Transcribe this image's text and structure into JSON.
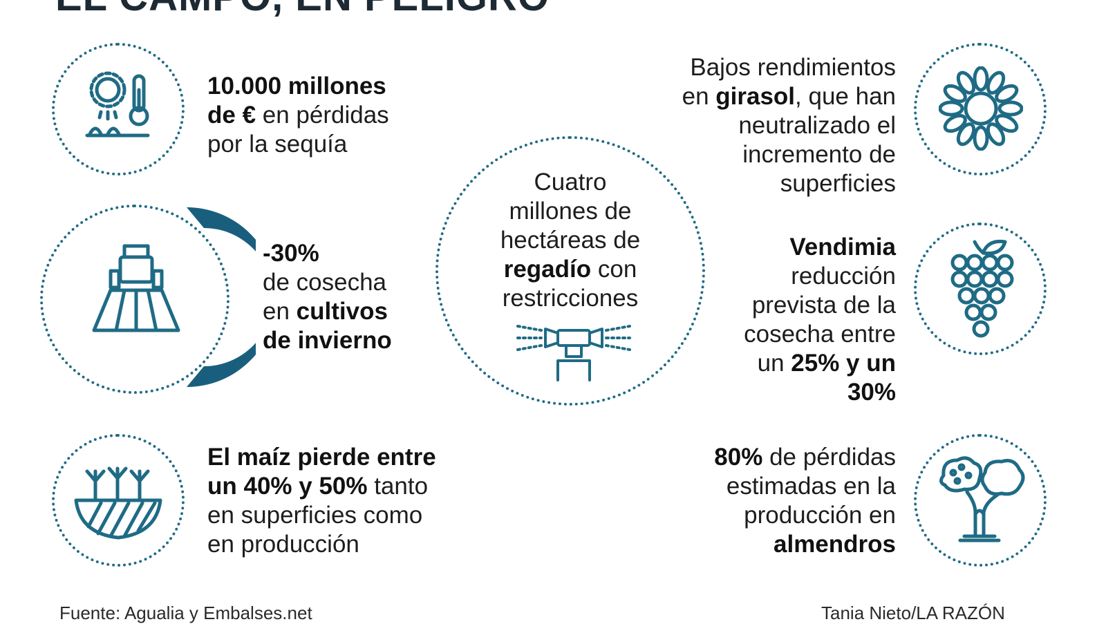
{
  "title": "EL CAMPO, EN PELIGRO",
  "items": {
    "drought": {
      "b1": "10.000 millones",
      "b2": "de €",
      "t1": " en pérdidas",
      "t2": "por la sequía"
    },
    "winter": {
      "b1": "-30%",
      "t1": "de cosecha",
      "t2": "en ",
      "b2": "cultivos",
      "b3": "de invierno"
    },
    "maize": {
      "b1": "El maíz pierde entre",
      "b2": "un 40% y 50%",
      "t1": " tanto",
      "t2": "en superficies como",
      "t3": "en producción"
    },
    "irrigation": {
      "t1": "Cuatro",
      "t2": "millones de",
      "t3": "hectáreas de",
      "b1": "regadío",
      "t4": " con",
      "t5": "restricciones"
    },
    "sunflower": {
      "t1": "Bajos rendimientos",
      "t2": "en ",
      "b1": "girasol",
      "t3": ", que han",
      "t4": "neutralizado el",
      "t5": "incremento de",
      "t6": "superficies"
    },
    "vintage": {
      "b1": "Vendimia",
      "t1": "reducción",
      "t2": "prevista de la",
      "t3": "cosecha entre",
      "t4": "un ",
      "b2": "25% y un",
      "b3": "30%"
    },
    "almonds": {
      "b1": "80%",
      "t1": " de pérdidas",
      "t2": "estimadas en la",
      "t3": "producción en",
      "b2": "almendros"
    }
  },
  "footer": {
    "source": "Fuente: Agualia y Embalses.net",
    "credit": "Tania Nieto/LA RAZÓN"
  },
  "colors": {
    "accent": "#1f6b85",
    "arc": "#195f7d",
    "text": "#1d1d1d"
  },
  "icons": [
    "sun-thermometer-icon",
    "tractor-icon",
    "sprouts-soil-icon",
    "sprinkler-icon",
    "sunflower-icon",
    "grapes-icon",
    "almond-tree-icon"
  ]
}
